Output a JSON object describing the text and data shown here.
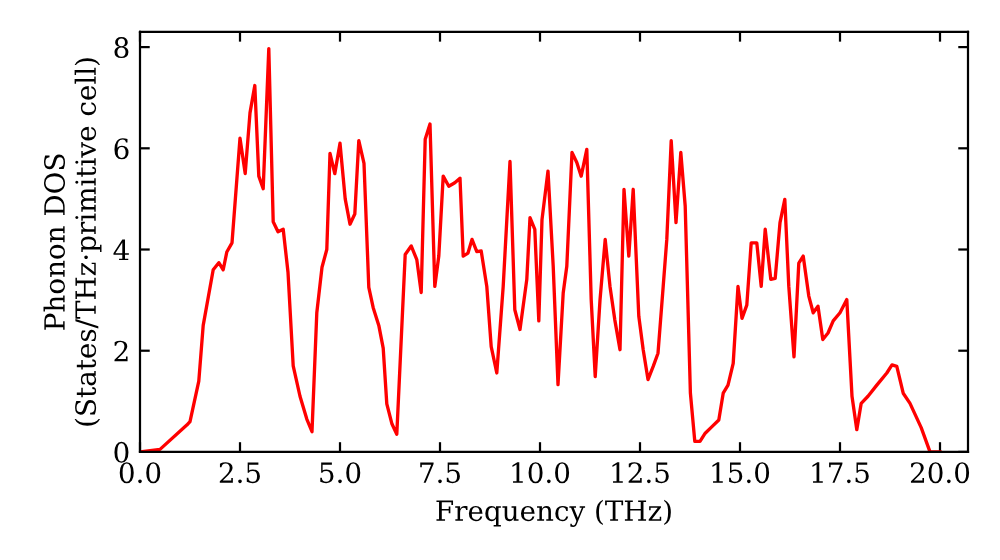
{
  "chart_data": {
    "type": "line",
    "xlabel": "Frequency (THz)",
    "ylabel": "Phonon DOS\n(States/THz·primitive cell)",
    "xlim": [
      0,
      20.7
    ],
    "ylim": [
      0,
      8.3
    ],
    "xticks": [
      {
        "value": 0,
        "label": "0.0"
      },
      {
        "value": 2.5,
        "label": "2.5"
      },
      {
        "value": 5,
        "label": "5.0"
      },
      {
        "value": 7.5,
        "label": "7.5"
      },
      {
        "value": 10,
        "label": "10.0"
      },
      {
        "value": 12.5,
        "label": "12.5"
      },
      {
        "value": 15,
        "label": "15.0"
      },
      {
        "value": 17.5,
        "label": "17.5"
      },
      {
        "value": 20,
        "label": "20.0"
      }
    ],
    "yticks": [
      0,
      2,
      4,
      6,
      8
    ],
    "grid": false,
    "marker": "none",
    "line_style": "solid",
    "series": [
      {
        "color": "#ff0000",
        "x": [
          0,
          0.5,
          1.17,
          1.25,
          1.47,
          1.58,
          1.83,
          1.97,
          2.08,
          2.17,
          2.3,
          2.5,
          2.63,
          2.75,
          2.87,
          2.97,
          3.08,
          3.22,
          3.33,
          3.45,
          3.58,
          3.7,
          3.83,
          4.0,
          4.17,
          4.3,
          4.42,
          4.55,
          4.67,
          4.75,
          4.87,
          5.0,
          5.13,
          5.25,
          5.37,
          5.47,
          5.6,
          5.72,
          5.83,
          5.97,
          6.08,
          6.17,
          6.3,
          6.42,
          6.63,
          6.78,
          6.92,
          7.03,
          7.13,
          7.25,
          7.37,
          7.47,
          7.58,
          7.72,
          7.87,
          8.0,
          8.08,
          8.2,
          8.3,
          8.42,
          8.53,
          8.67,
          8.78,
          8.92,
          9.08,
          9.25,
          9.37,
          9.5,
          9.67,
          9.75,
          9.87,
          9.97,
          10.05,
          10.2,
          10.33,
          10.45,
          10.58,
          10.67,
          10.8,
          10.92,
          11.03,
          11.17,
          11.28,
          11.38,
          11.5,
          11.63,
          11.75,
          11.87,
          12.0,
          12.1,
          12.22,
          12.33,
          12.47,
          12.58,
          12.7,
          12.83,
          12.95,
          13.08,
          13.17,
          13.28,
          13.4,
          13.52,
          13.63,
          13.76,
          13.87,
          14.0,
          14.13,
          14.3,
          14.47,
          14.58,
          14.7,
          14.83,
          14.95,
          15.05,
          15.17,
          15.28,
          15.42,
          15.53,
          15.63,
          15.77,
          15.88,
          16.0,
          16.12,
          16.22,
          16.35,
          16.47,
          16.58,
          16.72,
          16.83,
          16.95,
          17.07,
          17.2,
          17.33,
          17.5,
          17.67,
          17.8,
          17.92,
          18.03,
          18.2,
          18.42,
          18.67,
          18.8,
          18.92,
          19.08,
          19.25,
          19.53,
          19.75,
          20.0
        ],
        "values": [
          0,
          0.05,
          0.53,
          0.6,
          1.4,
          2.5,
          3.6,
          3.74,
          3.6,
          3.95,
          4.13,
          6.2,
          5.5,
          6.7,
          7.24,
          5.45,
          5.2,
          7.97,
          4.55,
          4.35,
          4.4,
          3.55,
          1.7,
          1.1,
          0.65,
          0.4,
          2.75,
          3.65,
          4.0,
          5.9,
          5.5,
          6.1,
          5.0,
          4.5,
          4.7,
          6.15,
          5.7,
          3.25,
          2.85,
          2.5,
          2.05,
          0.95,
          0.55,
          0.35,
          3.9,
          4.07,
          3.8,
          3.15,
          6.18,
          6.48,
          3.27,
          3.87,
          5.45,
          5.25,
          5.32,
          5.41,
          3.87,
          3.93,
          4.2,
          3.96,
          3.97,
          3.27,
          2.08,
          1.56,
          3.27,
          5.74,
          2.81,
          2.42,
          3.41,
          4.63,
          4.4,
          2.59,
          4.59,
          5.55,
          3.67,
          1.33,
          3.14,
          3.67,
          5.92,
          5.72,
          5.45,
          5.98,
          3.01,
          1.49,
          3.0,
          4.2,
          3.27,
          2.61,
          2.02,
          5.19,
          3.87,
          5.19,
          2.68,
          2.02,
          1.43,
          1.69,
          1.95,
          3.27,
          4.2,
          6.15,
          4.53,
          5.92,
          4.86,
          1.16,
          0.21,
          0.21,
          0.37,
          0.5,
          0.63,
          1.16,
          1.32,
          1.75,
          3.27,
          2.64,
          2.9,
          4.13,
          4.13,
          3.27,
          4.4,
          3.41,
          3.43,
          4.53,
          4.99,
          3.27,
          1.88,
          3.73,
          3.87,
          3.08,
          2.75,
          2.88,
          2.22,
          2.35,
          2.59,
          2.75,
          3.01,
          1.1,
          0.44,
          0.96,
          1.1,
          1.32,
          1.56,
          1.72,
          1.69,
          1.16,
          0.96,
          0.48,
          0,
          0
        ]
      }
    ]
  }
}
